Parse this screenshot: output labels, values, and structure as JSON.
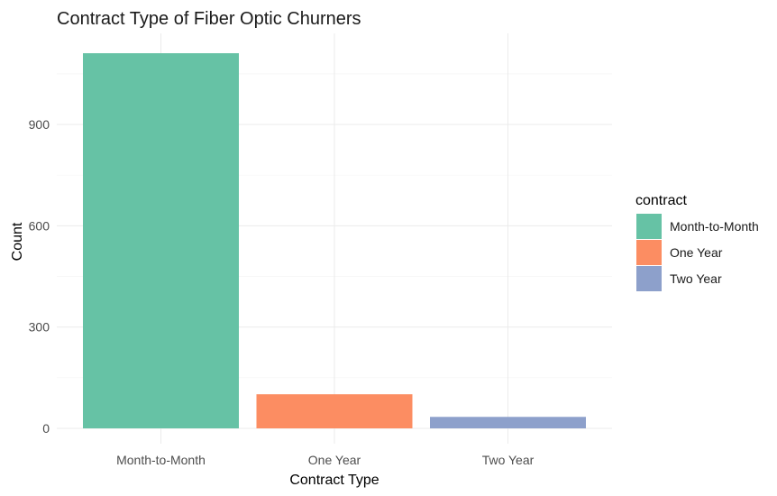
{
  "chart_data": {
    "type": "bar",
    "title": "Contract Type of Fiber Optic Churners",
    "xlabel": "Contract Type",
    "ylabel": "Count",
    "categories": [
      "Month-to-Month",
      "One Year",
      "Two Year"
    ],
    "values": [
      1111,
      101,
      34
    ],
    "colors": [
      "#66c2a5",
      "#fc8d62",
      "#8da0cb"
    ],
    "yticks": [
      0,
      300,
      600,
      900
    ],
    "ylim": [
      0,
      1166
    ],
    "grid": true,
    "legend": {
      "title": "contract",
      "position": "right",
      "items": [
        "Month-to-Month",
        "One Year",
        "Two Year"
      ]
    }
  }
}
